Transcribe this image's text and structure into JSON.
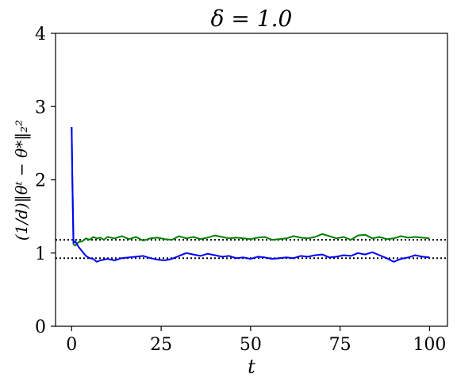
{
  "chart_data": {
    "type": "line",
    "title": "δ = 1.0",
    "xlabel": "t",
    "ylabel": "(1/d)‖θᵗ − θ*‖₂²",
    "xlim": [
      -4.5,
      105
    ],
    "ylim": [
      0,
      4
    ],
    "xticks": [
      "0",
      "25",
      "50",
      "75",
      "100"
    ],
    "yticks": [
      "0",
      "1",
      "2",
      "3",
      "4"
    ],
    "grid": false,
    "legend": "none",
    "reference_lines": [
      {
        "y": 1.18,
        "style": "dotted",
        "color": "#000000"
      },
      {
        "y": 0.93,
        "style": "dotted",
        "color": "#000000"
      }
    ],
    "series": [
      {
        "color": "#008000",
        "x": [
          0,
          0.2,
          0.5,
          1,
          1.5,
          2,
          3,
          4,
          5,
          6,
          7,
          8,
          9,
          10,
          12,
          14,
          16,
          18,
          20,
          22,
          24,
          26,
          28,
          30,
          32,
          34,
          36,
          38,
          40,
          42,
          44,
          46,
          48,
          50,
          52,
          54,
          56,
          58,
          60,
          62,
          64,
          66,
          68,
          70,
          72,
          74,
          76,
          78,
          80,
          82,
          84,
          86,
          88,
          90,
          92,
          94,
          96,
          98,
          100
        ],
        "y": [
          2.72,
          2.0,
          1.12,
          1.1,
          1.13,
          1.15,
          1.16,
          1.2,
          1.18,
          1.22,
          1.2,
          1.21,
          1.18,
          1.22,
          1.2,
          1.23,
          1.19,
          1.22,
          1.17,
          1.2,
          1.21,
          1.19,
          1.18,
          1.23,
          1.2,
          1.22,
          1.19,
          1.21,
          1.24,
          1.22,
          1.2,
          1.21,
          1.2,
          1.19,
          1.21,
          1.22,
          1.18,
          1.19,
          1.2,
          1.23,
          1.21,
          1.2,
          1.22,
          1.26,
          1.23,
          1.2,
          1.22,
          1.18,
          1.24,
          1.25,
          1.2,
          1.22,
          1.19,
          1.2,
          1.23,
          1.21,
          1.22,
          1.21,
          1.2
        ]
      },
      {
        "color": "#0000ff",
        "x": [
          0,
          0.2,
          0.5,
          1,
          1.5,
          2,
          3,
          4,
          5,
          6,
          7,
          8,
          9,
          10,
          12,
          14,
          16,
          18,
          20,
          22,
          24,
          26,
          28,
          30,
          32,
          34,
          36,
          38,
          40,
          42,
          44,
          46,
          48,
          50,
          52,
          54,
          56,
          58,
          60,
          62,
          64,
          66,
          68,
          70,
          72,
          74,
          76,
          78,
          80,
          82,
          84,
          86,
          88,
          90,
          92,
          94,
          96,
          98,
          100
        ],
        "y": [
          2.72,
          2.0,
          1.14,
          1.16,
          1.12,
          1.08,
          1.02,
          0.96,
          0.93,
          0.92,
          0.88,
          0.9,
          0.91,
          0.92,
          0.9,
          0.93,
          0.94,
          0.95,
          0.96,
          0.93,
          0.91,
          0.9,
          0.92,
          0.96,
          1.0,
          0.98,
          0.96,
          0.99,
          0.97,
          0.95,
          0.96,
          0.93,
          0.94,
          0.92,
          0.95,
          0.94,
          0.92,
          0.93,
          0.94,
          0.93,
          0.96,
          0.95,
          0.97,
          0.98,
          0.94,
          0.95,
          0.97,
          0.96,
          1.0,
          0.98,
          1.01,
          0.97,
          0.93,
          0.88,
          0.92,
          0.94,
          0.97,
          0.95,
          0.94
        ]
      }
    ]
  }
}
